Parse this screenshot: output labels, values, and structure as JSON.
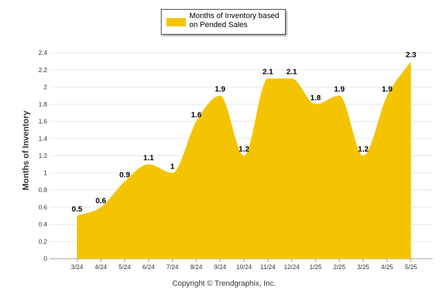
{
  "chart_data": {
    "type": "area",
    "categories": [
      "3/24",
      "4/24",
      "5/24",
      "6/24",
      "7/24",
      "8/24",
      "9/24",
      "10/24",
      "11/24",
      "12/24",
      "1/25",
      "2/25",
      "3/25",
      "4/25",
      "5/25"
    ],
    "series": [
      {
        "name": "Months of Inventory based on Pended Sales",
        "values": [
          0.5,
          0.6,
          0.9,
          1.1,
          1.0,
          1.6,
          1.9,
          1.2,
          2.1,
          2.1,
          1.8,
          1.9,
          1.2,
          1.9,
          2.3
        ],
        "labels": [
          "0.5",
          "0.6",
          "0.9",
          "1.1",
          "1",
          "1.6",
          "1.9",
          "1.2",
          "2.1",
          "2.1",
          "1.8",
          "1.9",
          "1.2",
          "1.9",
          "2.3"
        ],
        "color": "#f5c400"
      }
    ],
    "ylabel": "Months of Inventory",
    "ylim": [
      0,
      2.4
    ],
    "yticks": [
      "0",
      "0.2",
      "0.4",
      "0.6",
      "0.8",
      "1",
      "1.2",
      "1.4",
      "1.6",
      "1.8",
      "2",
      "2.2",
      "2.4"
    ],
    "grid": true,
    "legend_position": "top-center"
  },
  "legend": {
    "label": "Months of Inventory based on Pended Sales"
  },
  "footer": {
    "copyright": "Copyright © Trendgraphix, Inc."
  }
}
